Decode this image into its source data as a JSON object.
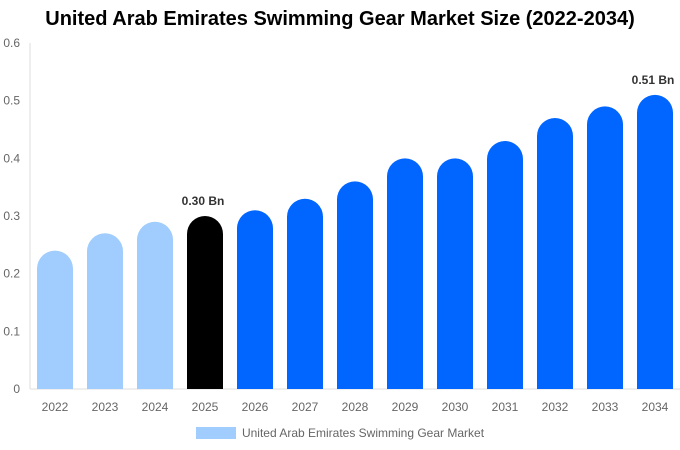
{
  "chart_data": {
    "type": "bar",
    "title": "United Arab Emirates Swimming Gear Market Size (2022-2034)",
    "categories": [
      "2022",
      "2023",
      "2024",
      "2025",
      "2026",
      "2027",
      "2028",
      "2029",
      "2030",
      "2031",
      "2032",
      "2033",
      "2034"
    ],
    "series": [
      {
        "name": "United Arab Emirates Swimming Gear Market",
        "values": [
          0.24,
          0.27,
          0.29,
          0.3,
          0.31,
          0.33,
          0.36,
          0.4,
          0.4,
          0.43,
          0.47,
          0.49,
          0.51
        ]
      }
    ],
    "ylim": [
      0,
      0.6
    ],
    "yticks": [
      "0",
      "0.1",
      "0.2",
      "0.3",
      "0.4",
      "0.5",
      "0.6"
    ],
    "data_labels": [
      {
        "category": "2025",
        "text": "0.30 Bn"
      },
      {
        "category": "2034",
        "text": "0.51 Bn"
      }
    ],
    "colors": {
      "historical": "#a0cdfd",
      "current": "#000000",
      "forecast": "#0066ff"
    },
    "grid": false,
    "legend": "bottom"
  }
}
